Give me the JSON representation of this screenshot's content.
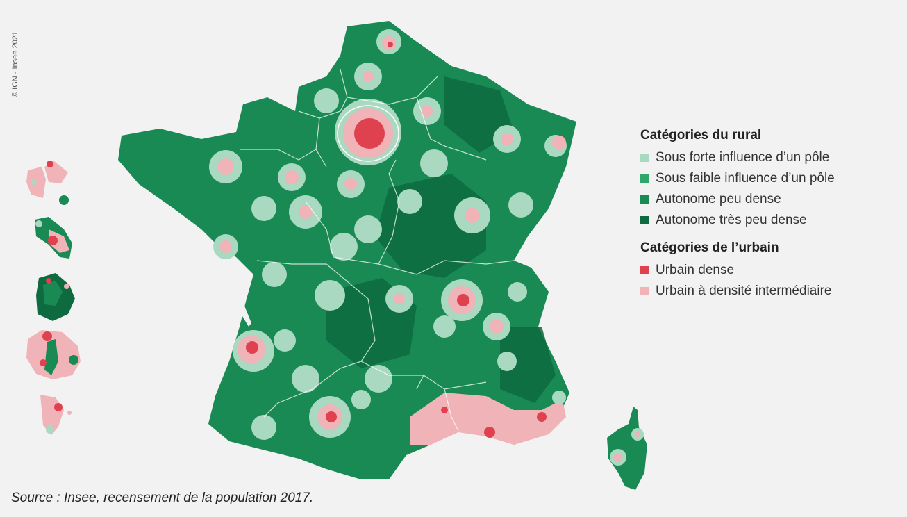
{
  "copyright": "© IGN - Insee 2021",
  "source": "Source : Insee, recensement de la population 2017.",
  "legend": {
    "rural_title": "Catégories du rural",
    "urban_title": "Catégories de l’urbain",
    "rural": [
      {
        "label": "Sous forte influence d’un pôle",
        "color": "#a9d9c0"
      },
      {
        "label": "Sous faible influence d’un pôle",
        "color": "#2ea86a"
      },
      {
        "label": "Autonome peu dense",
        "color": "#1a8a55"
      },
      {
        "label": "Autonome très peu dense",
        "color": "#0d6b3f"
      }
    ],
    "urban": [
      {
        "label": "Urbain dense",
        "color": "#e0414f"
      },
      {
        "label": "Urbain à densité intermédiaire",
        "color": "#f0b3b8"
      }
    ]
  },
  "colors": {
    "background": "#f2f2f2",
    "rural_main": "#1a8a55",
    "rural_dark": "#0d6b3f",
    "rural_light": "#a9d9c0",
    "urban_dense": "#e0414f",
    "urban_intermediate": "#f0b3b8",
    "borders": "#ffffff"
  }
}
